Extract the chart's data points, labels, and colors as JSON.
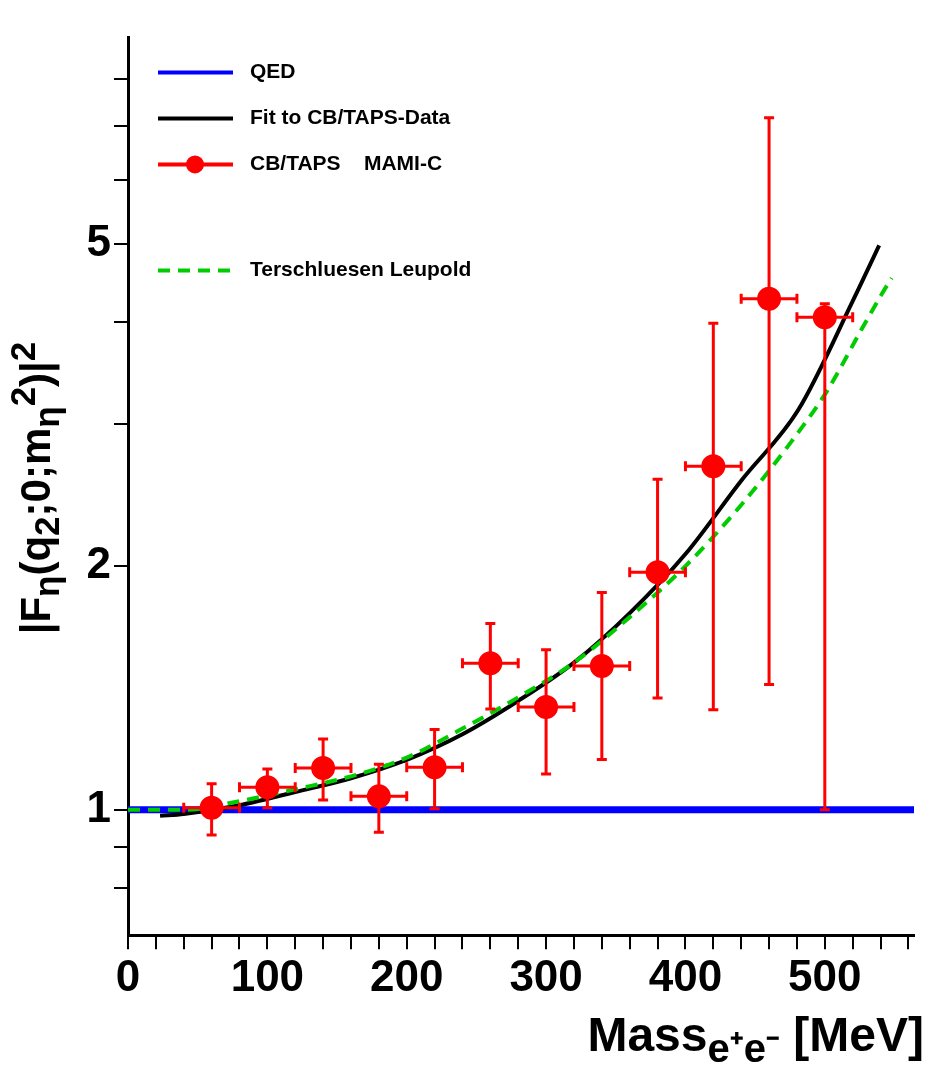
{
  "chart_data": {
    "type": "line",
    "xlabel": "Mass$_{e⁺e⁻}$ [MeV]",
    "ylabel": "|F$_{η}$(q$_{2}$;0;m$_{η}$$^{2}$)|$^{2}$",
    "log": "y",
    "grid": false,
    "legend": "top left",
    "xlim": [
      0,
      564
    ],
    "xticks": [
      0,
      {
        "value": 20,
        "label": null
      },
      {
        "value": 40,
        "label": null
      },
      {
        "value": 60,
        "label": null
      },
      {
        "value": 80,
        "label": null
      },
      100,
      {
        "value": 120,
        "label": null
      },
      {
        "value": 140,
        "label": null
      },
      {
        "value": 160,
        "label": null
      },
      {
        "value": 180,
        "label": null
      },
      200,
      {
        "value": 220,
        "label": null
      },
      {
        "value": 240,
        "label": null
      },
      {
        "value": 260,
        "label": null
      },
      {
        "value": 280,
        "label": null
      },
      300,
      {
        "value": 320,
        "label": null
      },
      {
        "value": 340,
        "label": null
      },
      {
        "value": 360,
        "label": null
      },
      {
        "value": 380,
        "label": null
      },
      400,
      {
        "value": 420,
        "label": null
      },
      {
        "value": 440,
        "label": null
      },
      {
        "value": 460,
        "label": null
      },
      {
        "value": 480,
        "label": null
      },
      500,
      {
        "value": 520,
        "label": null
      },
      {
        "value": 540,
        "label": null
      },
      {
        "value": 560,
        "label": null
      }
    ],
    "ylim": [
      0.7,
      9
    ],
    "yticks": [
      {
        "value": 0.8,
        "label": null
      },
      {
        "value": 0.9,
        "label": null
      },
      1,
      2,
      {
        "value": 3,
        "label": null
      },
      {
        "value": 4,
        "label": null
      },
      5,
      {
        "value": 6,
        "label": null
      },
      {
        "value": 7,
        "label": null
      },
      {
        "value": 8,
        "label": null
      }
    ],
    "series": [
      {
        "name": "QED",
        "color": "#0000ff",
        "marker": "none",
        "line_style": "solid",
        "x": [
          0,
          564
        ],
        "values": [
          1.0,
          1.0
        ]
      },
      {
        "name": "Fit to CB/TAPS-Data",
        "color": "#000000",
        "marker": "none",
        "line_style": "solid",
        "x": [
          23,
          40,
          80,
          120,
          160,
          200,
          240,
          279,
          320,
          360,
          400,
          440,
          481,
          520,
          539
        ],
        "values": [
          0.983,
          0.988,
          1.013,
          1.052,
          1.094,
          1.153,
          1.24,
          1.36,
          1.52,
          1.75,
          2.07,
          2.55,
          3.12,
          4.25,
          4.98
        ]
      },
      {
        "name": "CB/TAPS    MAMI-C",
        "type": "scatter",
        "color": "#ff0000",
        "marker": "circle",
        "x": [
          60,
          100,
          140,
          180,
          220,
          260,
          300,
          340,
          380,
          420,
          460,
          500
        ],
        "values": [
          1.006,
          1.066,
          1.126,
          1.039,
          1.129,
          1.517,
          1.34,
          1.505,
          1.966,
          2.657,
          4.28,
          4.06
        ],
        "errors": [
          [
            0.931,
            1.077
          ],
          [
            1.006,
            1.123
          ],
          [
            1.028,
            1.223
          ],
          [
            0.938,
            1.138
          ],
          [
            1.003,
            1.257
          ],
          [
            1.332,
            1.699
          ],
          [
            1.107,
            1.577
          ],
          [
            1.154,
            1.856
          ],
          [
            1.374,
            2.56
          ],
          [
            1.329,
            3.99
          ],
          [
            1.428,
            7.16
          ],
          [
            1.0,
            4.22
          ]
        ],
        "xerrors": [
          20,
          20,
          20,
          20,
          20,
          20,
          20,
          20,
          20,
          20,
          20,
          20
        ]
      },
      {
        "name": "Terschluesen Leupold",
        "color": "#00cc00",
        "marker": "none",
        "line_style": "dashed",
        "x": [
          0,
          40,
          80,
          120,
          160,
          200,
          240,
          279,
          320,
          360,
          400,
          440,
          476,
          502,
          527,
          541,
          548
        ],
        "values": [
          1.0,
          1.0,
          1.025,
          1.06,
          1.1,
          1.16,
          1.26,
          1.374,
          1.52,
          1.73,
          2.0,
          2.38,
          2.85,
          3.3,
          3.94,
          4.34,
          4.54
        ]
      }
    ]
  }
}
